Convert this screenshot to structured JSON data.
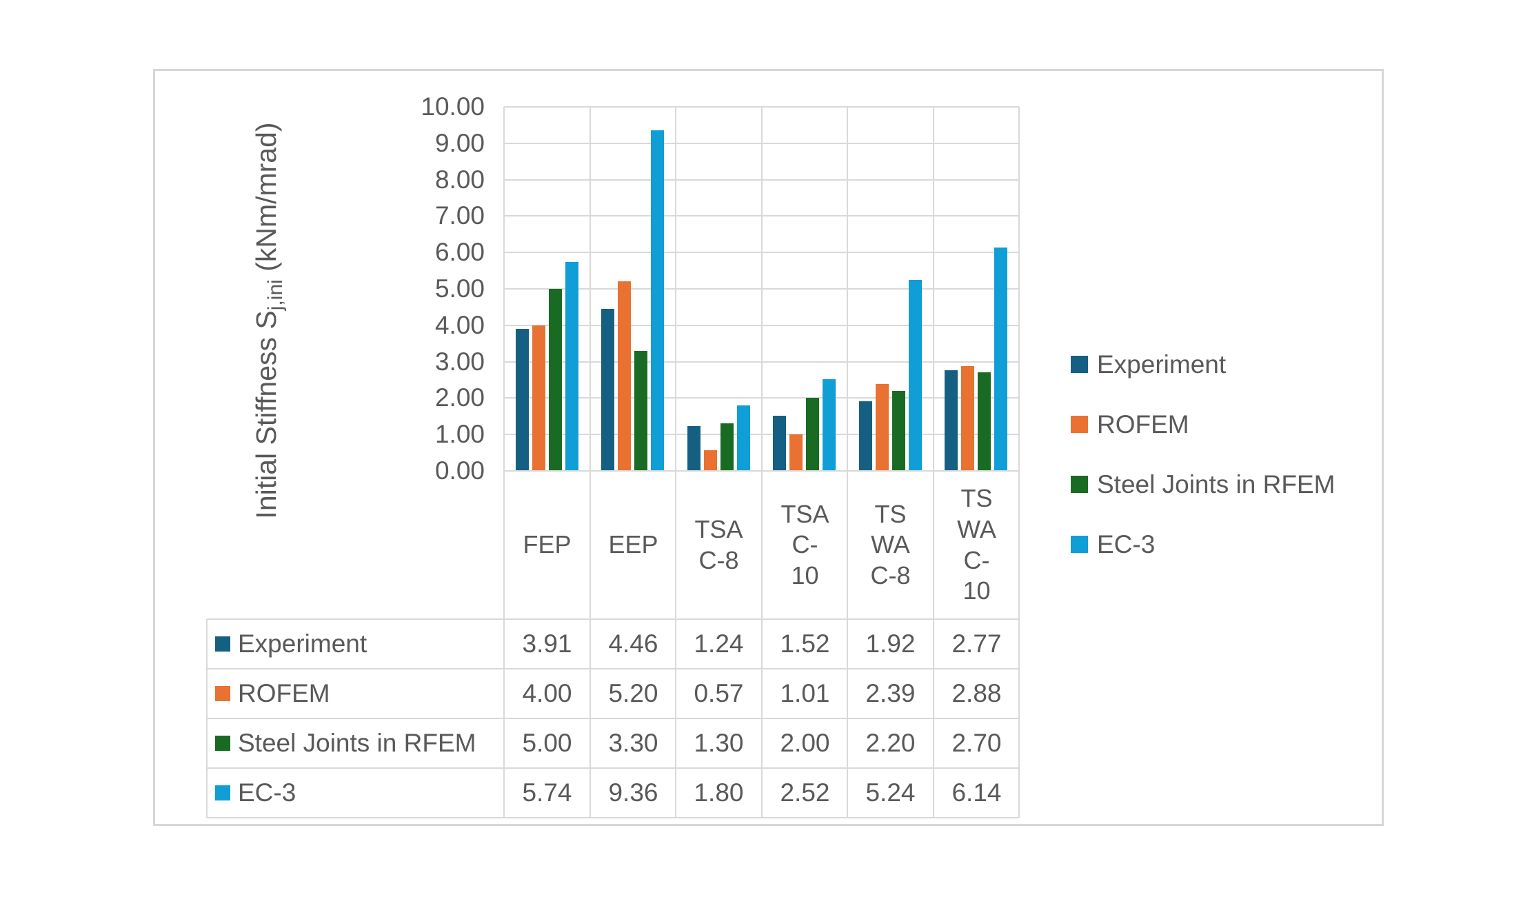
{
  "figure": {
    "axis_title_prefix": "Initial Stiffness S",
    "axis_title_sub": "j,ini",
    "axis_title_suffix": " (kNm/mrad)"
  },
  "chart_data": {
    "type": "bar",
    "title": "",
    "xlabel": "",
    "ylabel": "Initial Stiffness Sj,ini (kNm/mrad)",
    "ylim": [
      0,
      10
    ],
    "ytick_step": 1,
    "ytick_decimals": 2,
    "grid": true,
    "legend_position": "right",
    "data_table_shown": true,
    "categories": [
      "FEP",
      "EEP",
      "TSA C-8",
      "TSA C-10",
      "TS WA C-8",
      "TS WA C-10"
    ],
    "categories_display": [
      "FEP",
      "EEP",
      "TSA\nC-8",
      "TSA\nC-\n10",
      "TS\nWA\nC-8",
      "TS\nWA\nC-\n10"
    ],
    "series": [
      {
        "name": "Experiment",
        "color": "#156082",
        "values": [
          3.91,
          4.46,
          1.24,
          1.52,
          1.92,
          2.77
        ]
      },
      {
        "name": "ROFEM",
        "color": "#E97132",
        "values": [
          4.0,
          5.2,
          0.57,
          1.01,
          2.39,
          2.88
        ]
      },
      {
        "name": "Steel Joints in RFEM",
        "color": "#196B24",
        "values": [
          5.0,
          3.3,
          1.3,
          2.0,
          2.2,
          2.7
        ]
      },
      {
        "name": "EC-3",
        "color": "#0F9ED5",
        "values": [
          5.74,
          9.36,
          1.8,
          2.52,
          5.24,
          6.14
        ]
      }
    ]
  },
  "colors": {
    "background": "#FFFFFF",
    "frame_border": "#D7D7D7",
    "gridline": "#D9D9D9",
    "text": "#595959"
  }
}
